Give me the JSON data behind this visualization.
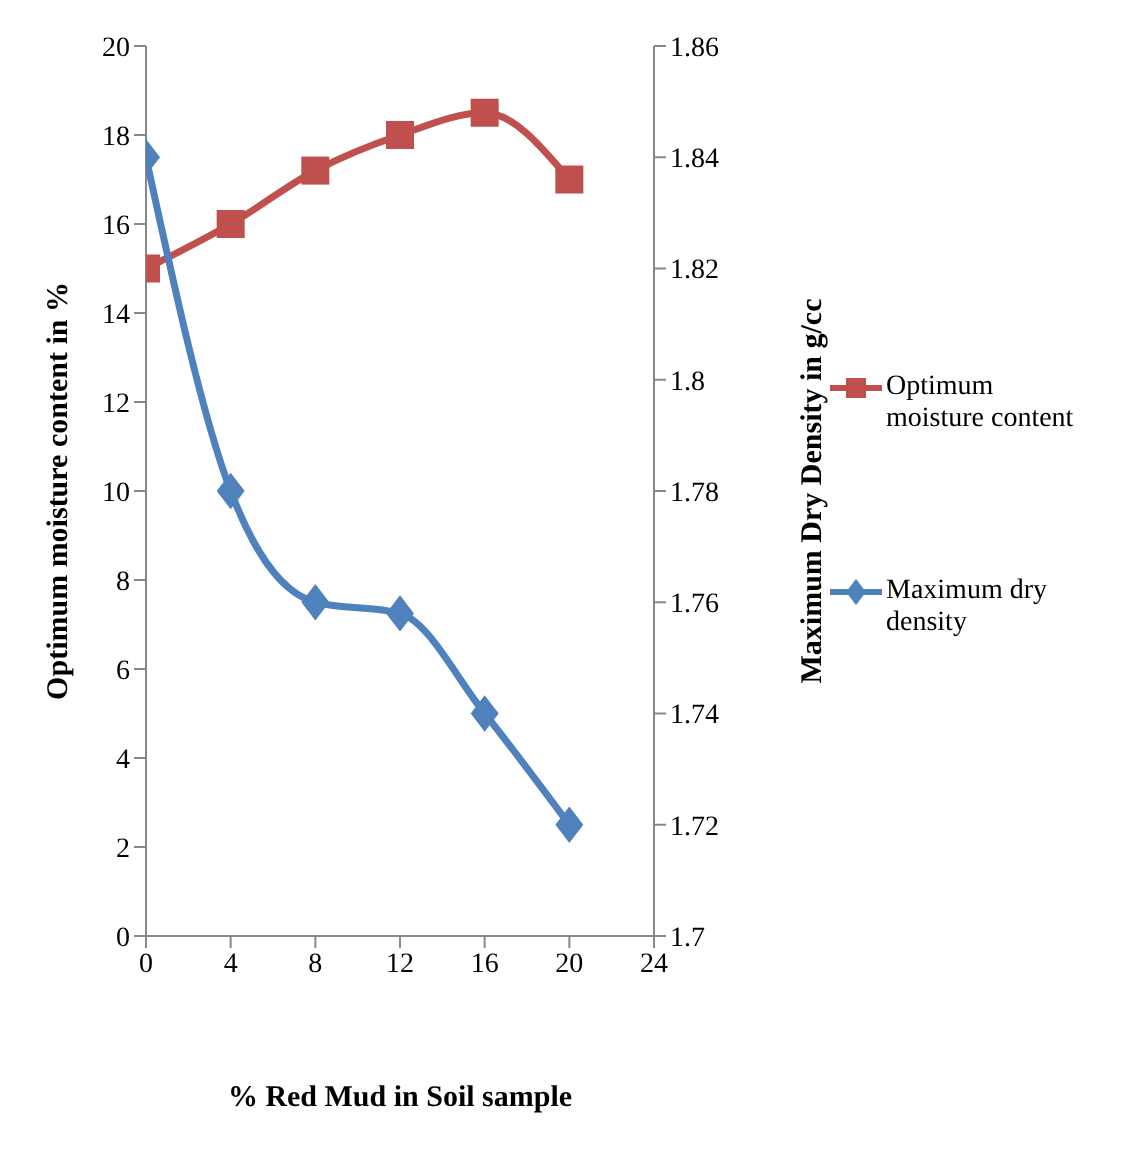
{
  "chart_data": {
    "type": "line",
    "xlabel": "% Red Mud in Soil sample",
    "ylabel": "Optimum moisture content in %",
    "y2label": "Maximum Dry Density in g/cc",
    "x": [
      0,
      4,
      8,
      12,
      16,
      20
    ],
    "series": [
      {
        "name": "Optimum moisture content",
        "color": "#c0504d",
        "marker": "square",
        "values": [
          15,
          16,
          17.2,
          18,
          18.5,
          17
        ]
      },
      {
        "name": "Maximum dry density",
        "color": "#4f81bd",
        "marker": "diamond",
        "axis": "y2",
        "values": [
          1.84,
          1.78,
          1.76,
          1.758,
          1.74,
          1.72
        ]
      }
    ],
    "xlim": [
      0,
      24
    ],
    "xticks": [
      0,
      4,
      8,
      12,
      16,
      20,
      24
    ],
    "ylim": [
      0,
      20
    ],
    "yticks": [
      0,
      2,
      4,
      6,
      8,
      10,
      12,
      14,
      16,
      18,
      20
    ],
    "y2lim": [
      1.7,
      1.86
    ],
    "y2ticks": [
      1.7,
      1.72,
      1.74,
      1.76,
      1.78,
      1.8,
      1.82,
      1.84,
      1.86
    ],
    "grid": false,
    "legend": "right",
    "line_style": "solid"
  }
}
